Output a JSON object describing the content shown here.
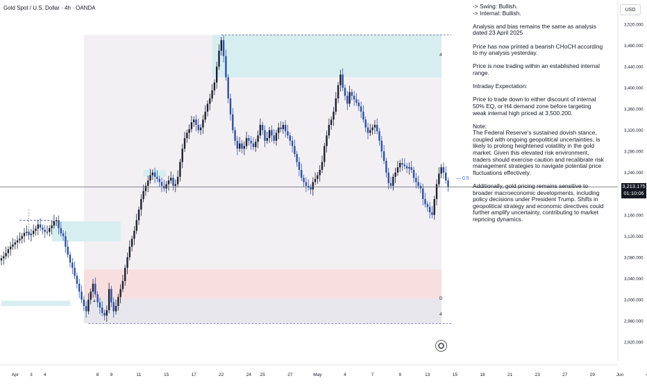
{
  "header": {
    "title": "Gold Spot / U.S. Dollar · 4h · OANDA",
    "currency": "USD"
  },
  "notes": {
    "bias": [
      "-> Swing:  Bullish.",
      "-> Internal:  Bullish."
    ],
    "p1": "Analysis and bias remains the same as analysis dated 23 April 2025",
    "p2": "Price has now printed a bearish CHoCH according to my analysis yesterday.",
    "p3": "Price is now trading within an established internal range.",
    "p4": "Intraday Expectation:",
    "p5": "Price to trade down to either discount of internal 50% EQ, or H4 demand zone before targeting weak internal high priced at 3,500.200.",
    "p6_title": "Note:",
    "p6": "The Federal Reserve’s sustained dovish stance, coupled with ongoing geopolitical uncertainties, is likely to prolong heightened volatility in the gold market. Given this elevated risk environment, traders should exercise caution and recalibrate risk management strategies to navigate potential price fluctuations effectively.",
    "p7": "Additionally, gold pricing remains sensitive to broader macroeconomic developments, including policy decisions under President Trump. Shifts in geopolitical strategy and economic directives could further amplify uncertainty, contributing to market repricing dynamics."
  },
  "price_tag": {
    "price": "3,213.175",
    "countdown": "01:10:06"
  },
  "level_label": "— 0.5",
  "zone_labels": {
    "supply": "4",
    "lower_d": "D",
    "lower_4": "4"
  },
  "colors": {
    "bull": "#1c1f2e",
    "bear": "#2a4fa8",
    "supply_zone": "#d7eef0",
    "demand_zone": "#f7dfe0",
    "grey_zone": "#e6e6ec",
    "range_band": "#f3f0f4",
    "dashed": "#4a4f9a",
    "current_line": "#5d606b"
  },
  "chart_data": {
    "type": "candlestick",
    "symbol": "Gold Spot / U.S. Dollar",
    "timeframe": "4h",
    "ylim": [
      2900,
      3540
    ],
    "y_ticks": [
      2920,
      2960,
      3000,
      3040,
      3080,
      3120,
      3160,
      3200,
      3240,
      3280,
      3320,
      3360,
      3400,
      3440,
      3480,
      3520
    ],
    "y_tick_labels": [
      "2,920.000",
      "2,960.000",
      "3,000.000",
      "3,040.000",
      "3,080.000",
      "3,120.000",
      "3,160.000",
      "3,200.000",
      "3,240.000",
      "3,280.000",
      "3,320.000",
      "3,360.000",
      "3,400.000",
      "3,440.000",
      "3,480.000",
      "3,520.000"
    ],
    "x_labels": [
      {
        "label": "Apr",
        "bar": 6
      },
      {
        "label": "3",
        "bar": 13
      },
      {
        "label": "4",
        "bar": 19
      },
      {
        "label": "8",
        "bar": 42
      },
      {
        "label": "9",
        "bar": 48
      },
      {
        "label": "11",
        "bar": 60
      },
      {
        "label": "15",
        "bar": 72
      },
      {
        "label": "17",
        "bar": 84
      },
      {
        "label": "22",
        "bar": 96
      },
      {
        "label": "24",
        "bar": 108
      },
      {
        "label": "25",
        "bar": 114
      },
      {
        "label": "27",
        "bar": 126
      },
      {
        "label": "May",
        "bar": 138
      },
      {
        "label": "4",
        "bar": 150
      },
      {
        "label": "7",
        "bar": 162
      },
      {
        "label": "9",
        "bar": 174
      },
      {
        "label": "13",
        "bar": 186
      },
      {
        "label": "15",
        "bar": 198
      },
      {
        "label": "18",
        "bar": 210
      },
      {
        "label": "21",
        "bar": 222
      },
      {
        "label": "23",
        "bar": 234
      },
      {
        "label": "27",
        "bar": 246
      },
      {
        "label": "29",
        "bar": 258
      },
      {
        "label": "Jun",
        "bar": 270
      },
      {
        "label": "4",
        "bar": 282
      }
    ],
    "candles_close": [
      3078,
      3082,
      3088,
      3095,
      3100,
      3104,
      3108,
      3112,
      3115,
      3120,
      3126,
      3128,
      3122,
      3124,
      3130,
      3134,
      3142,
      3136,
      3132,
      3128,
      3128,
      3135,
      3140,
      3148,
      3150,
      3135,
      3125,
      3120,
      3100,
      3085,
      3070,
      3060,
      3045,
      3030,
      3015,
      3000,
      2988,
      2978,
      3000,
      3015,
      3030,
      3010,
      2995,
      2985,
      2975,
      2970,
      2980,
      3020,
      2995,
      2978,
      2988,
      3005,
      3020,
      3035,
      3060,
      3080,
      3100,
      3115,
      3130,
      3150,
      3170,
      3190,
      3205,
      3215,
      3225,
      3235,
      3240,
      3232,
      3228,
      3222,
      3215,
      3210,
      3218,
      3225,
      3230,
      3215,
      3218,
      3232,
      3260,
      3285,
      3305,
      3315,
      3322,
      3335,
      3340,
      3330,
      3320,
      3325,
      3340,
      3355,
      3370,
      3380,
      3395,
      3410,
      3440,
      3470,
      3490,
      3460,
      3420,
      3380,
      3350,
      3320,
      3300,
      3285,
      3295,
      3285,
      3290,
      3305,
      3300,
      3295,
      3288,
      3298,
      3310,
      3330,
      3320,
      3300,
      3305,
      3320,
      3310,
      3300,
      3315,
      3325,
      3322,
      3330,
      3318,
      3310,
      3300,
      3290,
      3275,
      3260,
      3245,
      3230,
      3222,
      3215,
      3212,
      3208,
      3222,
      3228,
      3235,
      3245,
      3260,
      3290,
      3310,
      3330,
      3340,
      3355,
      3380,
      3405,
      3425,
      3400,
      3385,
      3370,
      3392,
      3385,
      3378,
      3372,
      3365,
      3355,
      3340,
      3325,
      3315,
      3320,
      3325,
      3330,
      3318,
      3300,
      3280,
      3262,
      3240,
      3220,
      3215,
      3232,
      3240,
      3250,
      3258,
      3255,
      3252,
      3248,
      3250,
      3245,
      3230,
      3222,
      3215,
      3210,
      3190,
      3180,
      3175,
      3165,
      3160,
      3190,
      3218,
      3238,
      3250,
      3240,
      3225,
      3213
    ]
  }
}
